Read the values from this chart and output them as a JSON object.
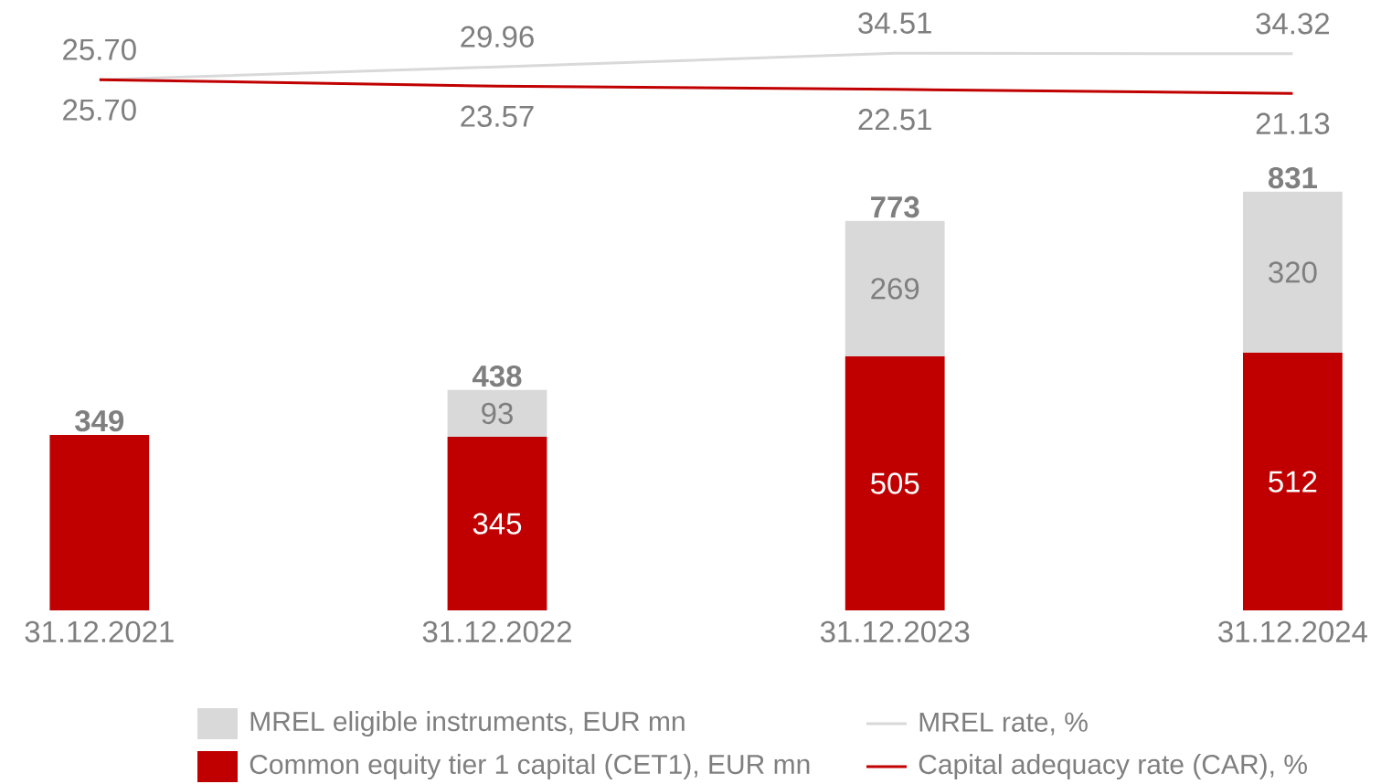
{
  "chart_data": [
    {
      "type": "bar",
      "stacked": true,
      "categories": [
        "31.12.2021",
        "31.12.2022",
        "31.12.2023",
        "31.12.2024"
      ],
      "tick_labels": "x",
      "legend": "bottom",
      "totals": [
        "349",
        "438",
        "773",
        "831"
      ],
      "series": [
        {
          "name": "Common equity tier 1 capital (CET1), EUR mn",
          "color": "#c00000",
          "values": [
            349,
            345,
            505,
            512
          ],
          "value_labels": [
            null,
            "345",
            "505",
            "512"
          ]
        },
        {
          "name": "MREL eligible instruments, EUR mn",
          "color": "#d9d9d9",
          "values": [
            null,
            93,
            269,
            320
          ],
          "value_labels": [
            null,
            "93",
            "269",
            "320"
          ]
        }
      ]
    },
    {
      "type": "line",
      "categories": [
        null,
        null,
        null,
        null
      ],
      "tick_labels": false,
      "legend": "bottom",
      "series": [
        {
          "name": "MREL rate, %",
          "color": "#d9d9d9",
          "values": [
            25.7,
            29.96,
            34.51,
            34.32
          ],
          "value_labels": [
            "25.70",
            "29.96",
            "34.51",
            "34.32"
          ]
        },
        {
          "name": "Capital adequacy rate (CAR), %",
          "color": "#c00000",
          "values": [
            25.7,
            23.57,
            22.51,
            21.13
          ],
          "value_labels": [
            "25.70",
            "23.57",
            "22.51",
            "21.13"
          ]
        }
      ]
    }
  ]
}
